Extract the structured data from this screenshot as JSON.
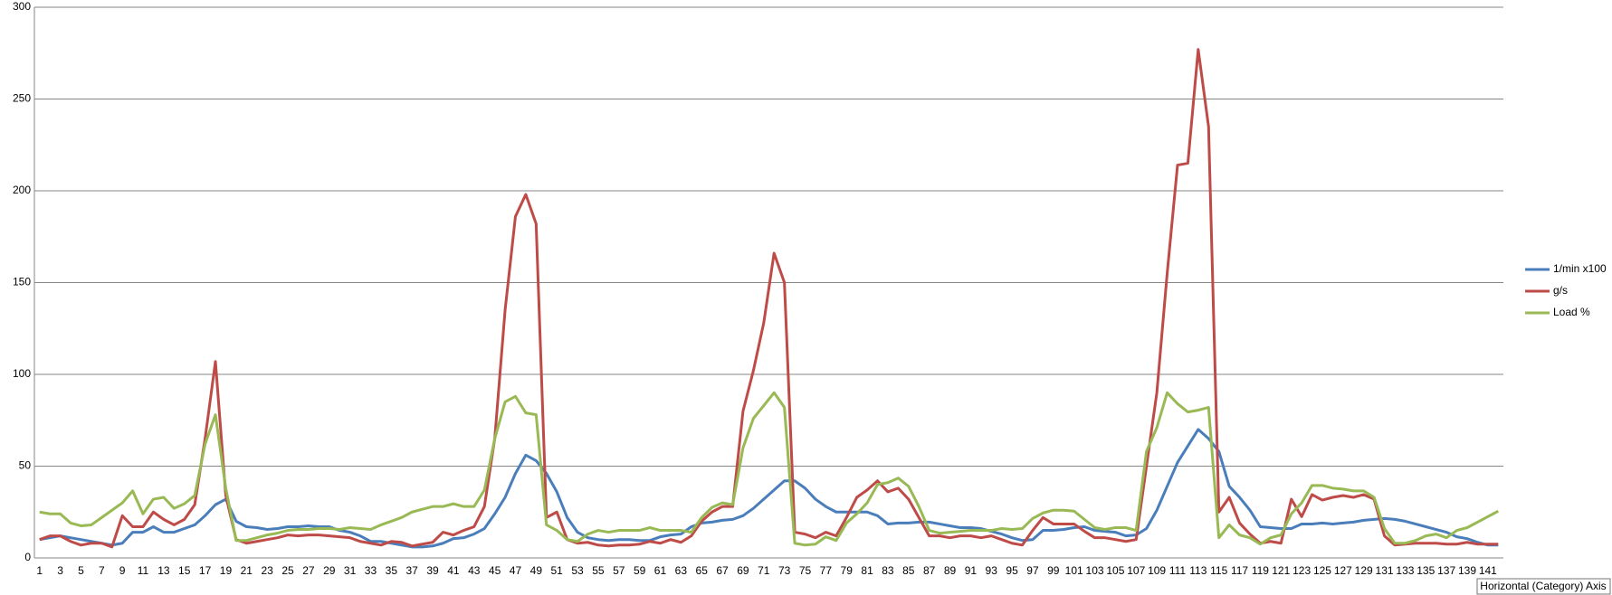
{
  "chart_data": {
    "type": "line",
    "categories": [
      1,
      null,
      3,
      null,
      5,
      null,
      7,
      null,
      9,
      null,
      11,
      null,
      13,
      null,
      15,
      null,
      17,
      null,
      19,
      null,
      21,
      null,
      23,
      null,
      25,
      null,
      27,
      null,
      29,
      null,
      31,
      null,
      33,
      null,
      35,
      null,
      37,
      null,
      39,
      null,
      41,
      null,
      43,
      null,
      45,
      null,
      47,
      null,
      49,
      null,
      51,
      null,
      53,
      null,
      55,
      null,
      57,
      null,
      59,
      null,
      61,
      null,
      63,
      null,
      65,
      null,
      67,
      null,
      69,
      null,
      71,
      null,
      73,
      null,
      75,
      null,
      77,
      null,
      79,
      null,
      81,
      null,
      83,
      null,
      85,
      null,
      87,
      null,
      89,
      null,
      91,
      null,
      93,
      null,
      95,
      null,
      97,
      null,
      99,
      null,
      101,
      null,
      103,
      null,
      105,
      null,
      107,
      null,
      109,
      null,
      111,
      null,
      113,
      null,
      115,
      null,
      117,
      null,
      119,
      null,
      121,
      null,
      123,
      null,
      125,
      null,
      127,
      null,
      129,
      null,
      131,
      null,
      133,
      null,
      135,
      null,
      137,
      null,
      139,
      null,
      141,
      null
    ],
    "series": [
      {
        "name": "1/min x100",
        "color": "#4a7ebb",
        "values": [
          10,
          11,
          12,
          11,
          10,
          9,
          8,
          7,
          8,
          14,
          14,
          17,
          14,
          14,
          16,
          18,
          23,
          29,
          32,
          20,
          17,
          16.5,
          15.5,
          16,
          17,
          17,
          17.5,
          17,
          17,
          15,
          14,
          12,
          9,
          9,
          8,
          7,
          6,
          6,
          6.5,
          8,
          10.5,
          11,
          13,
          16,
          24,
          33,
          46,
          56,
          53,
          46,
          36,
          22,
          14,
          11,
          10,
          9.5,
          10,
          10,
          9.5,
          9.5,
          11.5,
          12.5,
          13,
          17,
          19,
          19.5,
          20.5,
          21,
          23,
          27,
          32,
          37,
          42,
          42,
          38,
          32,
          28,
          25,
          25,
          25,
          25,
          23,
          18.5,
          19,
          19,
          19.5,
          19.5,
          18.5,
          17.5,
          16.5,
          16.5,
          16,
          14.5,
          13,
          11,
          9.5,
          10,
          15,
          15,
          15.5,
          16.5,
          17,
          15,
          14.5,
          14,
          12,
          12.5,
          16,
          26,
          39,
          52,
          61,
          70,
          65,
          58,
          39,
          33,
          26,
          17,
          16.5,
          16,
          16,
          18.5,
          18.5,
          19,
          18.5,
          19,
          19.5,
          20.5,
          21,
          21.5,
          21,
          20,
          18.5,
          17,
          15.5,
          14,
          11.5,
          10.5,
          8.5,
          7,
          7
        ]
      },
      {
        "name": "g/s",
        "color": "#be4b48",
        "values": [
          10,
          12,
          12,
          9,
          7,
          8,
          8,
          6,
          23,
          17,
          17,
          25,
          21,
          18,
          21,
          29,
          65,
          107,
          34,
          10,
          8,
          9,
          10,
          11,
          12.5,
          12,
          12.5,
          12.5,
          12,
          11.5,
          11,
          9,
          8,
          7,
          9,
          8.5,
          6.5,
          7.5,
          8.5,
          14,
          12.5,
          15,
          17,
          28,
          65,
          135,
          186,
          198,
          182,
          22,
          25,
          10,
          8,
          8.5,
          7,
          6.5,
          7,
          7,
          7.5,
          9,
          8,
          10,
          8.5,
          12,
          20,
          25,
          28,
          28,
          80,
          102,
          128,
          166,
          150,
          14,
          13,
          11,
          14,
          12,
          22,
          33,
          37,
          42,
          36,
          38,
          32,
          22,
          12,
          12,
          11,
          12,
          12,
          11,
          12,
          10,
          8,
          7,
          15,
          22,
          18.5,
          18.5,
          18.5,
          14.5,
          11,
          11,
          10,
          9,
          10,
          50,
          90,
          155,
          214,
          215,
          277,
          235,
          25,
          33,
          19,
          13,
          8,
          9,
          8,
          32,
          22.5,
          34.5,
          31.5,
          33,
          34,
          33,
          34.5,
          32,
          12,
          7,
          7.5,
          8,
          8,
          8,
          7.5,
          7.5,
          8.5,
          7.5,
          7.5,
          7.5
        ]
      },
      {
        "name": "Load %",
        "color": "#98b954",
        "values": [
          25,
          24,
          24,
          19,
          17.5,
          18,
          22,
          26,
          30,
          36.5,
          24,
          32,
          33,
          27,
          29.5,
          34,
          62,
          78,
          38,
          9.5,
          9.5,
          11,
          12.5,
          13.5,
          15,
          15.5,
          15.5,
          16,
          16,
          15.5,
          16.5,
          16,
          15.5,
          18,
          20,
          22,
          25,
          26.5,
          28,
          28,
          29.5,
          28,
          28,
          37,
          65,
          85,
          88,
          79,
          78,
          18,
          15,
          10,
          9,
          13,
          15,
          14,
          15,
          15,
          15,
          16.5,
          15,
          15,
          15,
          14,
          22,
          27.5,
          30,
          29,
          60,
          76,
          83,
          90,
          82,
          8,
          7,
          7.5,
          11.5,
          9.5,
          19,
          24,
          30,
          40,
          41,
          43.5,
          39,
          28,
          15,
          13.5,
          14,
          14.5,
          15,
          15,
          15,
          16,
          15.5,
          16,
          21.5,
          24.5,
          26,
          26,
          25.5,
          21,
          16.5,
          15.5,
          16.5,
          16.5,
          15,
          58,
          71,
          90,
          84,
          79.5,
          80.5,
          82,
          11,
          18,
          12.5,
          11,
          7.5,
          11,
          12.5,
          24,
          30,
          39.5,
          39.5,
          38,
          37.5,
          36.5,
          36.5,
          33,
          16,
          8,
          8,
          9.5,
          12,
          13,
          11,
          15,
          16.5,
          19.5,
          22.5,
          25.5
        ]
      }
    ],
    "ylim": [
      0,
      300
    ],
    "yticks": [
      0,
      50,
      100,
      150,
      200,
      250,
      300
    ],
    "grid": true,
    "legend": "right",
    "tooltip": "Horizontal (Category) Axis"
  }
}
